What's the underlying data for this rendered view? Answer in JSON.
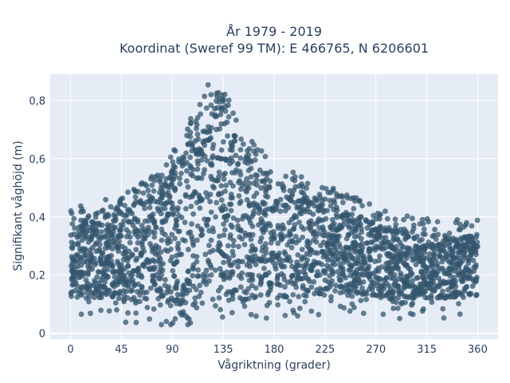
{
  "chart_data": {
    "type": "scatter",
    "title_line1": "År 1979 - 2019",
    "title_line2": "Koordinat (Sweref 99 TM): E 466765, N 6206601",
    "xlabel": "Vågriktning (grader)",
    "ylabel": "Signifikant våghöjd (m)",
    "xlim": [
      -18,
      378
    ],
    "ylim": [
      -0.02,
      0.89
    ],
    "x_ticks": [
      0,
      45,
      90,
      135,
      180,
      225,
      270,
      315,
      360
    ],
    "x_tick_labels": [
      "0",
      "45",
      "90",
      "135",
      "180",
      "225",
      "270",
      "315",
      "360"
    ],
    "y_ticks": [
      0,
      0.2,
      0.4,
      0.6,
      0.8
    ],
    "y_tick_labels": [
      "0",
      "0,2",
      "0,4",
      "0,6",
      "0,8"
    ],
    "grid": true,
    "marker_color": "#34566e",
    "background_color": "#e5ecf6",
    "density_envelope": {
      "x": [
        0,
        30,
        60,
        80,
        100,
        115,
        125,
        135,
        150,
        180,
        225,
        270,
        300,
        330,
        360
      ],
      "upper": [
        0.38,
        0.4,
        0.45,
        0.52,
        0.62,
        0.76,
        0.82,
        0.8,
        0.65,
        0.52,
        0.45,
        0.38,
        0.34,
        0.33,
        0.34
      ],
      "lower": [
        0.12,
        0.12,
        0.1,
        0.09,
        0.09,
        0.1,
        0.11,
        0.11,
        0.12,
        0.12,
        0.13,
        0.12,
        0.12,
        0.12,
        0.13
      ]
    }
  }
}
